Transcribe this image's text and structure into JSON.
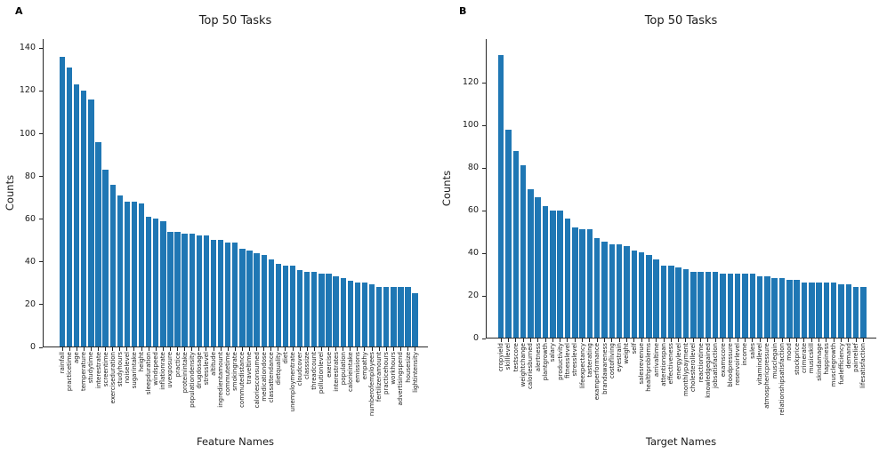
{
  "figure": {
    "background": "#ffffff",
    "bar_color": "#1f77b4",
    "text_color": "#1a1a1a",
    "spine_color": "#262626"
  },
  "chart_data": [
    {
      "type": "bar",
      "panel_label": "A",
      "title": "Top 50 Tasks",
      "ylabel": "Counts",
      "xlabel": "Feature Names",
      "yticks": [
        0,
        20,
        40,
        60,
        80,
        100,
        120,
        140
      ],
      "ylim": [
        0,
        144
      ],
      "grid": false,
      "legend": "none",
      "categories": [
        "rainfall",
        "practicetime",
        "age",
        "temperature",
        "studytime",
        "interestrate",
        "screentime",
        "exerciseduration",
        "studyhours",
        "noiselevel",
        "sugarintake",
        "height",
        "sleepduration",
        "windspeed",
        "inflationrate",
        "uvexposure",
        "practice",
        "proteinintake",
        "populationdensity",
        "drugdosage",
        "stresslevel",
        "altitude",
        "ingredientamount",
        "commutetime",
        "smokingrate",
        "commutedistance",
        "traveltime",
        "caloriesconsumed",
        "medicationdose",
        "classattendance",
        "dietquality",
        "diet",
        "unemploymentrate",
        "cloudcover",
        "classsize",
        "threadcount",
        "pollutionlevel",
        "exercise",
        "interestrates",
        "population",
        "calorieintake",
        "emissions",
        "empathy",
        "numberofemployees",
        "fertilizeramount",
        "practicehours",
        "workhours",
        "advertisingspend",
        "housesize",
        "lightintensity"
      ],
      "values": [
        136,
        131,
        123,
        120,
        116,
        96,
        83,
        76,
        71,
        68,
        68,
        67,
        61,
        60,
        59,
        54,
        54,
        53,
        53,
        52,
        52,
        50,
        50,
        49,
        49,
        46,
        45,
        44,
        43,
        41,
        39,
        38,
        38,
        36,
        35,
        35,
        34,
        34,
        33,
        32,
        31,
        30,
        30,
        29,
        28,
        28,
        28,
        28,
        28,
        25
      ]
    },
    {
      "type": "bar",
      "panel_label": "B",
      "title": "Top 50 Tasks",
      "ylabel": "Counts",
      "xlabel": "Target Names",
      "yticks": [
        0,
        20,
        40,
        60,
        80,
        100,
        120
      ],
      "ylim": [
        0,
        140
      ],
      "grid": false,
      "legend": "none",
      "categories": [
        "cropyield",
        "skilllevel",
        "testscore",
        "weightchange",
        "caloriesburned",
        "alertness",
        "plantgrowth",
        "salary",
        "productivity",
        "fitnesslevel",
        "stresslevel",
        "lifeexpectancy",
        "tasterating",
        "examperformance",
        "brandawareness",
        "costofliving",
        "eyestrain",
        "weight",
        "self",
        "salesrevenue",
        "healthproblems",
        "arrivaltime",
        "attentionspan",
        "effectiveness",
        "energylevel",
        "monthlypayment",
        "cholesterollevel",
        "reactiontime",
        "knowledgegained",
        "jobsatisfaction",
        "examscore",
        "bloodpressure",
        "reservoirlevel",
        "income",
        "sales",
        "vitamindlevel",
        "atmosphericpressure",
        "musclegain",
        "relationshipsatisfaction",
        "mood",
        "stockprice",
        "crimerate",
        "musicskill",
        "skindamage",
        "happiness",
        "musclegrowth",
        "fuelefficiency",
        "demand",
        "painrelief",
        "lifesatisfaction"
      ],
      "values": [
        133,
        98,
        88,
        81,
        70,
        66,
        62,
        60,
        60,
        56,
        52,
        51,
        51,
        47,
        45,
        44,
        44,
        43,
        41,
        40,
        39,
        37,
        34,
        34,
        33,
        32,
        31,
        31,
        31,
        31,
        30,
        30,
        30,
        30,
        30,
        29,
        29,
        28,
        28,
        27,
        27,
        26,
        26,
        26,
        26,
        26,
        25,
        25,
        24,
        24
      ]
    }
  ]
}
